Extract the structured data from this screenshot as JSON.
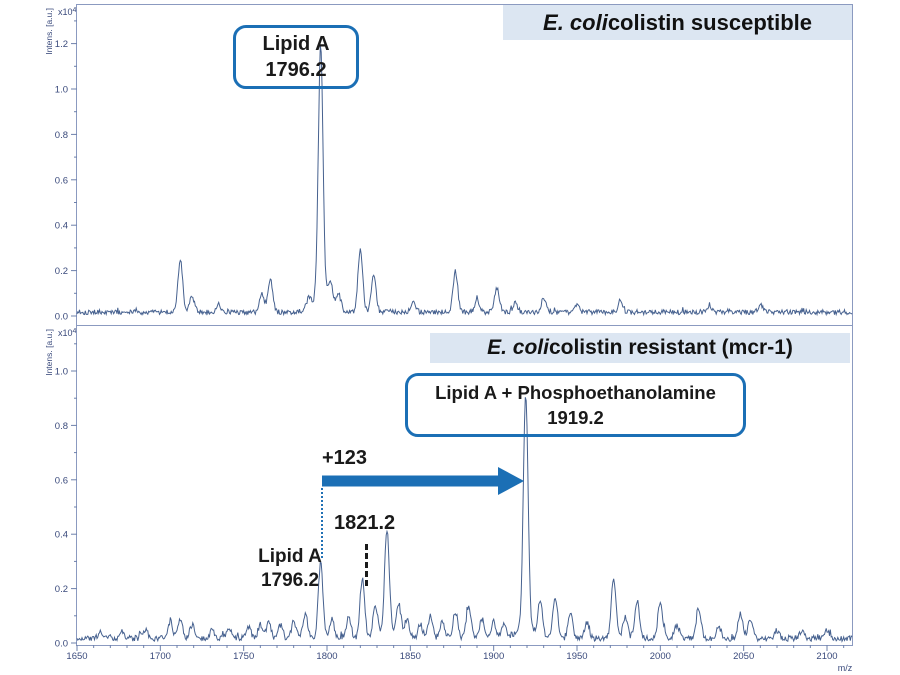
{
  "axes": {
    "x": {
      "label": "m/z",
      "min": 1650,
      "max": 2115,
      "major_step": 50,
      "minor_step": 10,
      "tick_labels": [
        "1650",
        "1700",
        "1750",
        "1800",
        "1850",
        "1900",
        "1950",
        "2000",
        "2050",
        "2100"
      ]
    },
    "y_top": {
      "label": "Intens. [a.u.]",
      "scale_text": "x10",
      "scale_exp": "4",
      "tick_labels": [
        "0.0",
        "0.2",
        "0.4",
        "0.6",
        "0.8",
        "1.0",
        "1.2"
      ]
    },
    "y_bottom": {
      "label": "Intens. [a.u.]",
      "scale_text": "x10",
      "scale_exp": "4",
      "tick_labels": [
        "0.0",
        "0.2",
        "0.4",
        "0.6",
        "0.8",
        "1.0"
      ]
    }
  },
  "colors": {
    "spectrum_line": "#46618f",
    "frame": "#8b9ac0",
    "tick_line": "#6d80ab",
    "tick_text": "#3a4a7c",
    "accent_blue": "#1b6fb5",
    "dotted_blue": "#2171b5",
    "title_bg": "#dce6f2",
    "annotation_text": "#1a1a1a"
  },
  "chart_data": [
    {
      "type": "line",
      "panel": "top",
      "title_italic": "E. coli",
      "title_rest": " colistin susceptible",
      "xlabel": "m/z",
      "ylabel": "Intens. [a.u.] x10^4",
      "xlim": [
        1650,
        2115
      ],
      "ylim": [
        0,
        1.37
      ],
      "y_tick_step": 0.2,
      "annotation_box": {
        "line1": "Lipid A",
        "line2": "1796.2",
        "mz": 1796.2
      },
      "main_peak": {
        "mz": 1796.2,
        "intensity": 1.12
      },
      "peaks": [
        [
          1712,
          0.23
        ],
        [
          1719,
          0.07
        ],
        [
          1735,
          0.03
        ],
        [
          1761,
          0.08
        ],
        [
          1766,
          0.15
        ],
        [
          1789,
          0.04
        ],
        [
          1796.2,
          1.12
        ],
        [
          1802,
          0.11
        ],
        [
          1807,
          0.07
        ],
        [
          1820,
          0.28
        ],
        [
          1828,
          0.16
        ],
        [
          1852,
          0.04
        ],
        [
          1877,
          0.18
        ],
        [
          1890,
          0.05
        ],
        [
          1902,
          0.11
        ],
        [
          1913,
          0.04
        ],
        [
          1930,
          0.06
        ],
        [
          1950,
          0.03
        ],
        [
          1976,
          0.05
        ],
        [
          2030,
          0.02
        ],
        [
          2060,
          0.03
        ]
      ],
      "noise_baseline": 0.018
    },
    {
      "type": "line",
      "panel": "bottom",
      "title_italic": "E. coli",
      "title_rest": " colistin resistant (mcr-1)",
      "xlabel": "m/z",
      "ylabel": "Intens. [a.u.] x10^4",
      "xlim": [
        1650,
        2115
      ],
      "ylim": [
        0,
        1.17
      ],
      "y_tick_step": 0.2,
      "annotation_box": {
        "line1": "Lipid A + Phosphoethanolamine",
        "line2": "1919.2",
        "mz": 1919.2
      },
      "mass_shift_label": "+123",
      "peak_1821_label": "1821.2",
      "lipid_a_label": {
        "line1": "Lipid A",
        "line2": "1796.2"
      },
      "markers": {
        "arrow_from_mz": 1796.2,
        "arrow_to_mz": 1919.2,
        "dotted_line_mz": 1796.2,
        "dashed_line_mz": 1821.2
      },
      "main_peak": {
        "mz": 1919.2,
        "intensity": 0.86
      },
      "peaks": [
        [
          1664,
          0.02
        ],
        [
          1677,
          0.03
        ],
        [
          1691,
          0.03
        ],
        [
          1706,
          0.06
        ],
        [
          1712,
          0.07
        ],
        [
          1719,
          0.05
        ],
        [
          1731,
          0.03
        ],
        [
          1741,
          0.04
        ],
        [
          1753,
          0.04
        ],
        [
          1760,
          0.05
        ],
        [
          1765,
          0.06
        ],
        [
          1772,
          0.05
        ],
        [
          1780,
          0.06
        ],
        [
          1787,
          0.09
        ],
        [
          1796.2,
          0.28
        ],
        [
          1803,
          0.07
        ],
        [
          1813,
          0.08
        ],
        [
          1821.2,
          0.22
        ],
        [
          1829,
          0.11
        ],
        [
          1836,
          0.38
        ],
        [
          1843,
          0.12
        ],
        [
          1848,
          0.07
        ],
        [
          1856,
          0.05
        ],
        [
          1862,
          0.08
        ],
        [
          1869,
          0.06
        ],
        [
          1877,
          0.1
        ],
        [
          1885,
          0.12
        ],
        [
          1893,
          0.07
        ],
        [
          1900,
          0.06
        ],
        [
          1906,
          0.05
        ],
        [
          1919.2,
          0.86
        ],
        [
          1928,
          0.13
        ],
        [
          1937,
          0.15
        ],
        [
          1946,
          0.09
        ],
        [
          1956,
          0.06
        ],
        [
          1972,
          0.22
        ],
        [
          1979,
          0.08
        ],
        [
          1986,
          0.14
        ],
        [
          2000,
          0.14
        ],
        [
          2010,
          0.05
        ],
        [
          2023,
          0.11
        ],
        [
          2035,
          0.04
        ],
        [
          2048,
          0.09
        ],
        [
          2054,
          0.07
        ],
        [
          2070,
          0.03
        ],
        [
          2085,
          0.03
        ],
        [
          2100,
          0.03
        ]
      ],
      "noise_baseline": 0.018
    }
  ]
}
